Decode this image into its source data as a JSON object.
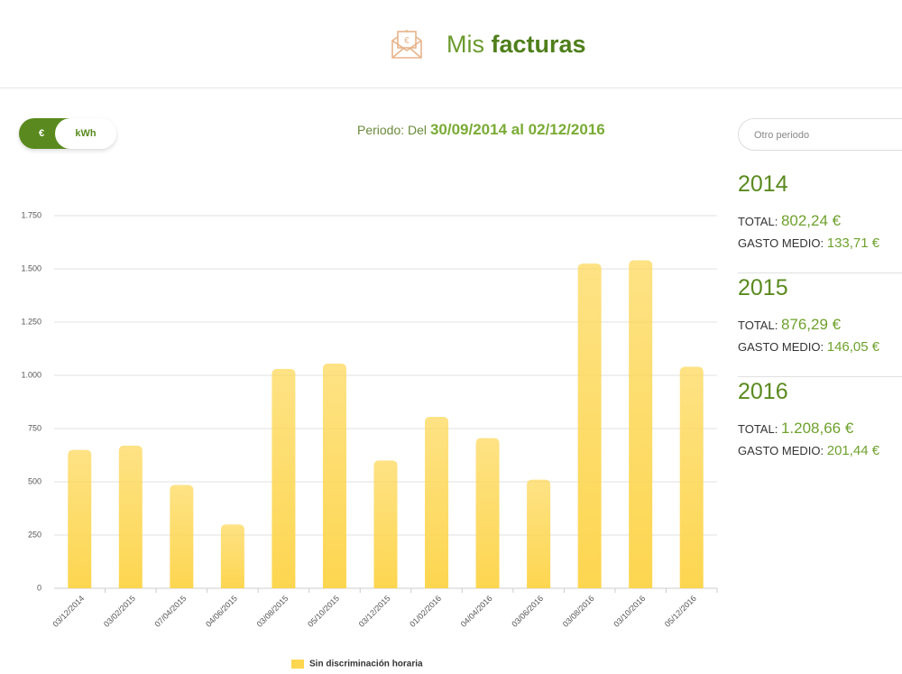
{
  "header": {
    "title_light": "Mis",
    "title_bold": "facturas"
  },
  "toggle": {
    "left": "€",
    "right": "kWh"
  },
  "period": {
    "label": "Periodo: Del",
    "range": "30/09/2014 al 02/12/2016"
  },
  "search": {
    "placeholder": "Otro periodo"
  },
  "summaries": [
    {
      "year": "2014",
      "total_label": "TOTAL:",
      "total": "802,24 €",
      "avg_label": "GASTO MEDIO:",
      "avg": "133,71 €"
    },
    {
      "year": "2015",
      "total_label": "TOTAL:",
      "total": "876,29 €",
      "avg_label": "GASTO MEDIO:",
      "avg": "146,05 €"
    },
    {
      "year": "2016",
      "total_label": "TOTAL:",
      "total": "1.208,66 €",
      "avg_label": "GASTO MEDIO:",
      "avg": "201,44 €"
    }
  ],
  "chart_data": {
    "type": "bar",
    "categories": [
      "03/12/2014",
      "03/02/2015",
      "07/04/2015",
      "04/06/2015",
      "03/08/2015",
      "05/10/2015",
      "03/12/2015",
      "01/02/2016",
      "04/04/2016",
      "03/06/2016",
      "03/08/2016",
      "03/10/2016",
      "05/12/2016"
    ],
    "series": [
      {
        "name": "Sin discriminación horaria",
        "color": "#fdd650",
        "values": [
          650,
          670,
          485,
          300,
          1030,
          1055,
          600,
          805,
          705,
          510,
          1525,
          1540,
          1040
        ]
      }
    ],
    "ylim": [
      0,
      1750
    ],
    "yticks": [
      0,
      250,
      500,
      750,
      {
        "value": 1000,
        "label": "1.000"
      },
      {
        "value": 1250,
        "label": "1.250"
      },
      {
        "value": 1500,
        "label": "1.500"
      },
      {
        "value": 1750,
        "label": "1.750"
      }
    ],
    "grid": true
  }
}
